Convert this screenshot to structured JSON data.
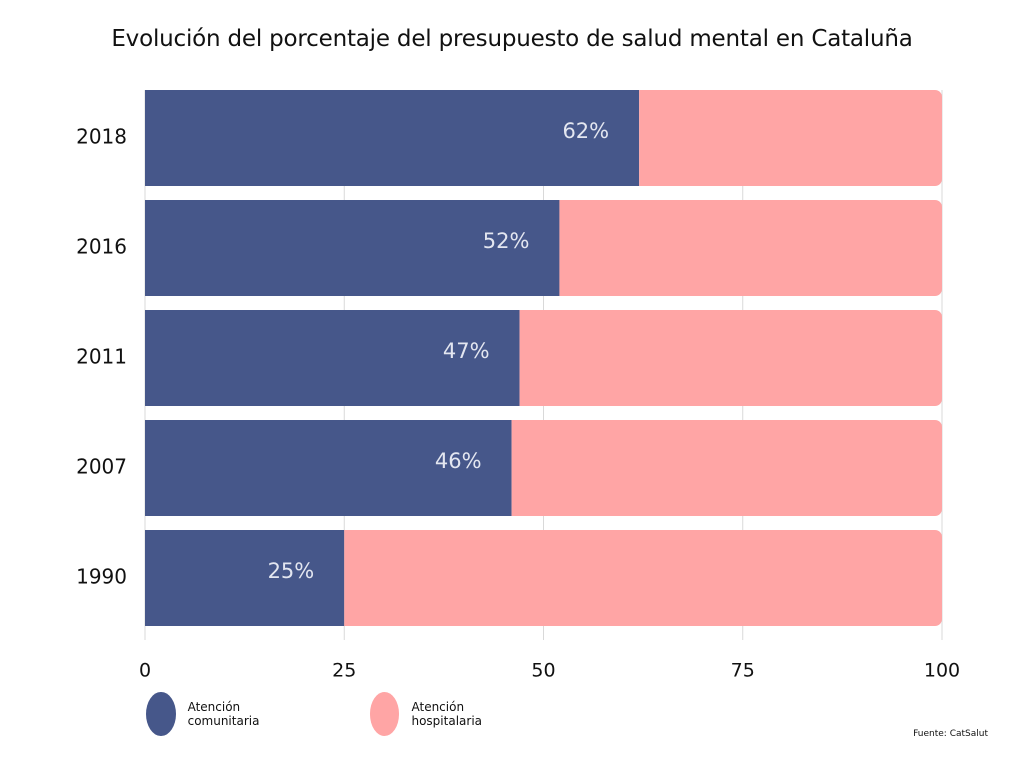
{
  "chart_data": {
    "type": "bar",
    "orientation": "horizontal",
    "stacked": true,
    "title": "Evolución del porcentaje del presupuesto de salud mental en Cataluña",
    "categories": [
      "2018",
      "2016",
      "2011",
      "2007",
      "1990"
    ],
    "series": [
      {
        "name": "Atención comunitaria",
        "color": "#46578a",
        "values": [
          62,
          52,
          47,
          46,
          25
        ],
        "data_labels": [
          "62%",
          "52%",
          "47%",
          "46%",
          "25%"
        ]
      },
      {
        "name": "Atención hospitalaria",
        "color": "#ffa5a5",
        "values": [
          38,
          48,
          53,
          54,
          75
        ]
      }
    ],
    "xlim": [
      0,
      100
    ],
    "x_ticks": [
      "0",
      "25",
      "50",
      "75",
      "100"
    ],
    "grid": true,
    "legend_position": "bottom-left",
    "xlabel": "",
    "ylabel": ""
  },
  "source": "Fuente: CatSalut"
}
